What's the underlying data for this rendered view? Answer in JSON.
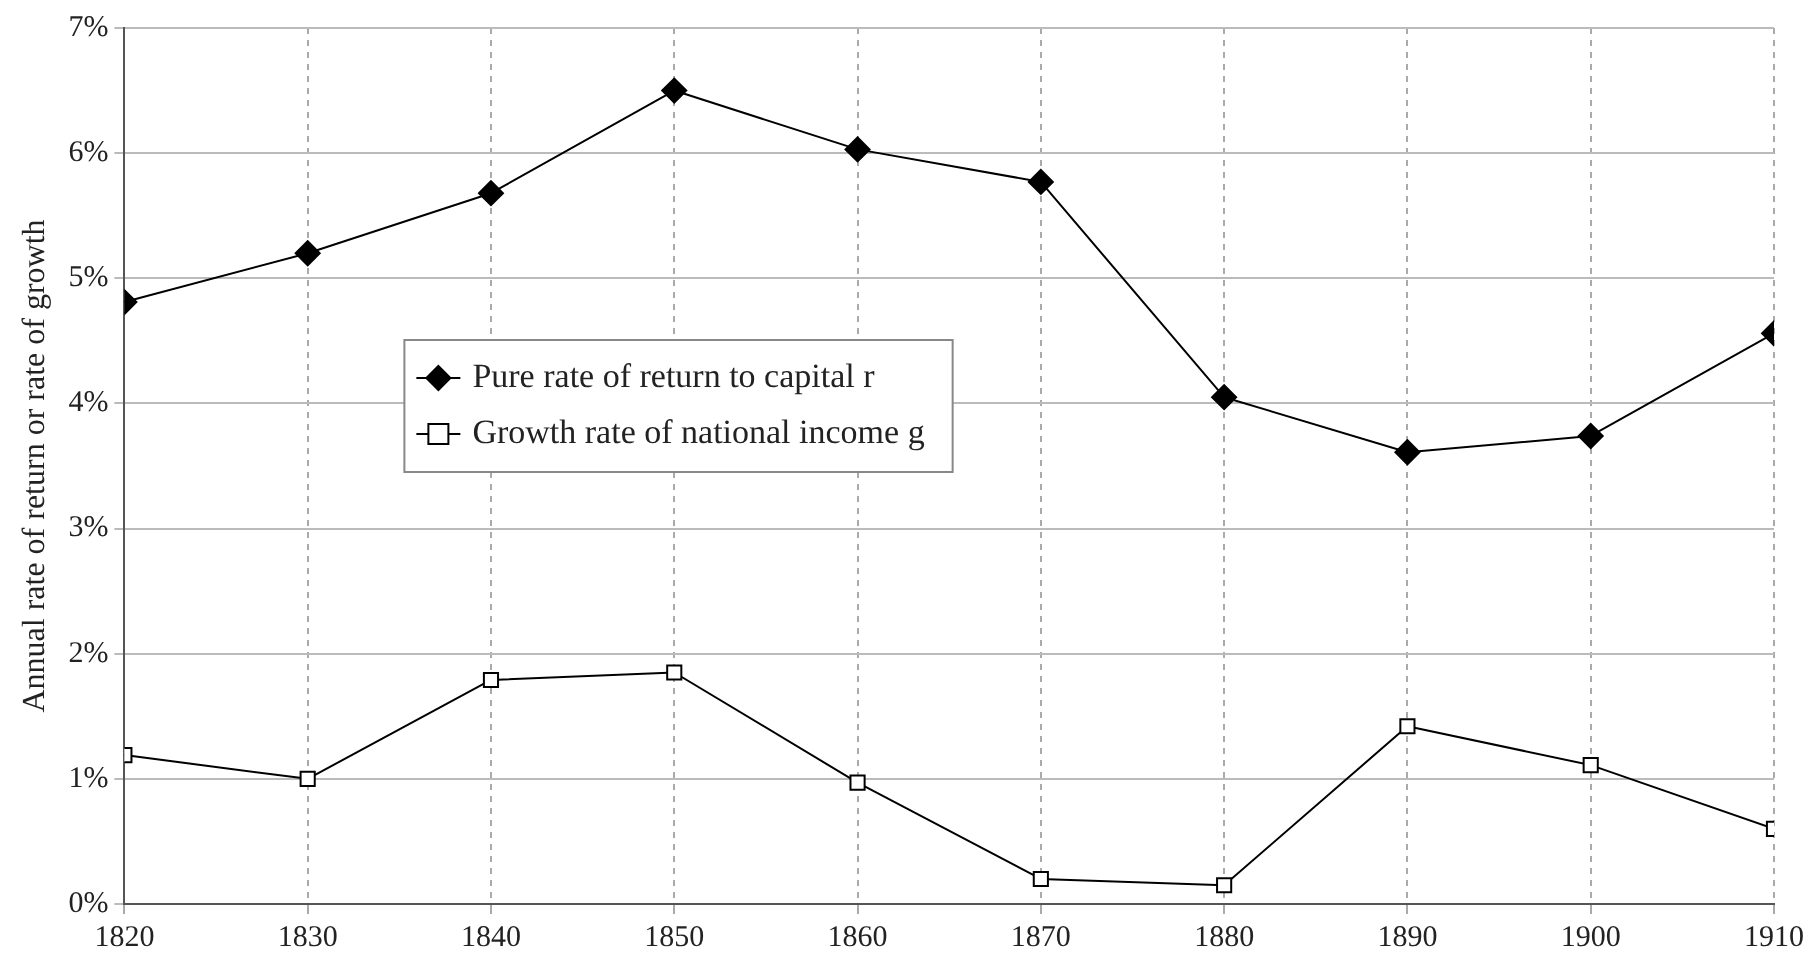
{
  "chart_data": {
    "type": "line",
    "ylabel": "Annual rate of return or rate of growth",
    "x": [
      1820,
      1830,
      1840,
      1850,
      1860,
      1870,
      1880,
      1890,
      1900,
      1910
    ],
    "series": [
      {
        "name": "Pure rate of return to capital r",
        "color": "#000000",
        "marker": "diamond",
        "values": [
          4.81,
          5.2,
          5.68,
          6.5,
          6.03,
          5.77,
          4.05,
          3.61,
          3.74,
          4.56
        ]
      },
      {
        "name": "Growth rate of national income g",
        "color": "#000000",
        "marker": "square",
        "values": [
          1.19,
          1.0,
          1.79,
          1.85,
          0.97,
          0.2,
          0.15,
          1.42,
          1.11,
          0.6
        ]
      }
    ],
    "xlim": [
      1820,
      1910
    ],
    "xticks": [
      1820,
      1830,
      1840,
      1850,
      1860,
      1870,
      1880,
      1890,
      1900,
      1910
    ],
    "ylim": [
      0,
      7
    ],
    "yticks": [
      {
        "value": 0,
        "label": "0%"
      },
      {
        "value": 1,
        "label": "1%"
      },
      {
        "value": 2,
        "label": "2%"
      },
      {
        "value": 3,
        "label": "3%"
      },
      {
        "value": 4,
        "label": "4%"
      },
      {
        "value": 5,
        "label": "5%"
      },
      {
        "value": 6,
        "label": "6%"
      },
      {
        "value": 7,
        "label": "7%"
      }
    ],
    "grid": true,
    "legend": "left",
    "line_style": "solid"
  }
}
